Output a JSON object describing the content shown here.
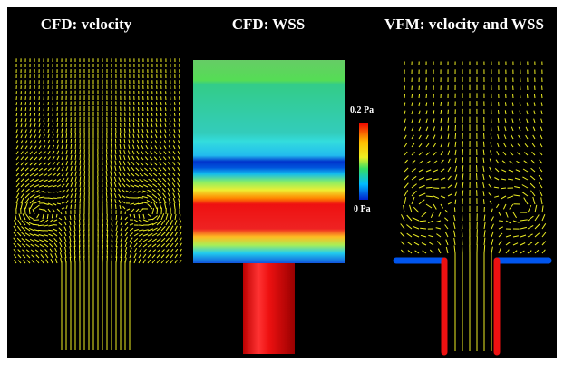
{
  "panels": [
    {
      "title": "CFD: velocity"
    },
    {
      "title": "CFD: WSS"
    },
    {
      "title": "VFM: velocity and WSS"
    }
  ],
  "colorbar": {
    "max_label": "0.2 Pa",
    "min_label": "0 Pa"
  }
}
